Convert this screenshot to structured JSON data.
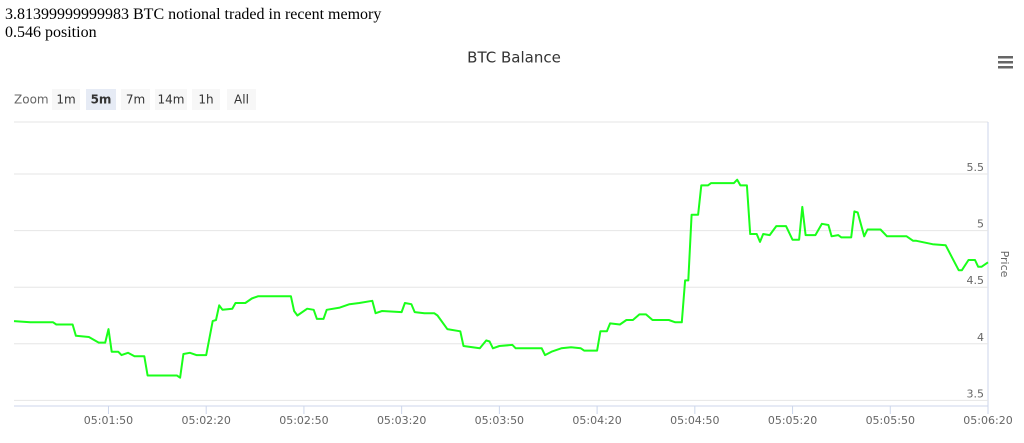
{
  "header": {
    "lines": [
      "3.81399999999983 BTC notional traded in recent memory",
      "0.546 position"
    ]
  },
  "chart_data": {
    "type": "line",
    "title": "BTC Balance",
    "y_axis_label": "Price",
    "zoom": {
      "label": "Zoom",
      "buttons": [
        "1m",
        "5m",
        "7m",
        "14m",
        "1h",
        "All"
      ],
      "selected": 1
    },
    "grid": true,
    "xlim": [
      "05:01:21",
      "05:06:20"
    ],
    "xticks": [
      "05:01:50",
      "05:02:20",
      "05:02:50",
      "05:03:20",
      "05:03:50",
      "05:04:20",
      "05:04:50",
      "05:05:20",
      "05:05:50",
      "05:06:20"
    ],
    "ylim": [
      3.45,
      5.96
    ],
    "yticks": [
      3.5,
      4,
      4.5,
      5,
      5.5
    ],
    "x": [
      "05:01:21",
      "05:01:26",
      "05:01:33",
      "05:01:34",
      "05:01:39",
      "05:01:40",
      "05:01:44",
      "05:01:47",
      "05:01:49",
      "05:01:50",
      "05:01:51",
      "05:01:53",
      "05:01:54",
      "05:01:56",
      "05:01:58",
      "05:02:01",
      "05:02:02",
      "05:02:11",
      "05:02:12",
      "05:02:13",
      "05:02:15",
      "05:02:17",
      "05:02:20",
      "05:02:22",
      "05:02:23",
      "05:02:24",
      "05:02:25",
      "05:02:28",
      "05:02:29",
      "05:02:32",
      "05:02:34",
      "05:02:36",
      "05:02:46",
      "05:02:47",
      "05:02:48",
      "05:02:51",
      "05:02:53",
      "05:02:54",
      "05:02:56",
      "05:02:57",
      "05:03:01",
      "05:03:04",
      "05:03:07",
      "05:03:11",
      "05:03:12",
      "05:03:14",
      "05:03:20",
      "05:03:21",
      "05:03:23",
      "05:03:24",
      "05:03:27",
      "05:03:30",
      "05:03:31",
      "05:03:34",
      "05:03:38",
      "05:03:39",
      "05:03:44",
      "05:03:46",
      "05:03:47",
      "05:03:48",
      "05:03:50",
      "05:03:54",
      "05:03:55",
      "05:04:03",
      "05:04:04",
      "05:04:06",
      "05:04:09",
      "05:04:12",
      "05:04:15",
      "05:04:16",
      "05:04:20",
      "05:04:21",
      "05:04:23",
      "05:04:24",
      "05:04:27",
      "05:04:29",
      "05:04:31",
      "05:04:33",
      "05:04:35",
      "05:04:37",
      "05:04:42",
      "05:04:44",
      "05:04:46",
      "05:04:47",
      "05:04:48",
      "05:04:49",
      "05:04:51",
      "05:04:52",
      "05:04:54",
      "05:04:55",
      "05:04:58",
      "05:05:02",
      "05:05:03",
      "05:05:04",
      "05:05:06",
      "05:05:07",
      "05:05:09",
      "05:05:10",
      "05:05:11",
      "05:05:13",
      "05:05:15",
      "05:05:18",
      "05:05:20",
      "05:05:22",
      "05:05:23",
      "05:05:24",
      "05:05:27",
      "05:05:29",
      "05:05:31",
      "05:05:32",
      "05:05:34",
      "05:05:35",
      "05:05:38",
      "05:05:39",
      "05:05:40",
      "05:05:42",
      "05:05:43",
      "05:05:47",
      "05:05:49",
      "05:05:55",
      "05:05:57",
      "05:05:58",
      "05:06:03",
      "05:06:07",
      "05:06:09",
      "05:06:11",
      "05:06:12",
      "05:06:14",
      "05:06:16",
      "05:06:17",
      "05:06:18",
      "05:06:20"
    ],
    "series": [
      {
        "name": "Price",
        "color": "#1aff1a",
        "values": [
          4.2,
          4.19,
          4.19,
          4.17,
          4.17,
          4.07,
          4.06,
          4.01,
          4.01,
          4.13,
          3.93,
          3.93,
          3.9,
          3.92,
          3.89,
          3.89,
          3.72,
          3.72,
          3.7,
          3.91,
          3.92,
          3.9,
          3.9,
          4.2,
          4.21,
          4.34,
          4.3,
          4.31,
          4.36,
          4.36,
          4.4,
          4.42,
          4.42,
          4.29,
          4.25,
          4.31,
          4.3,
          4.22,
          4.22,
          4.3,
          4.32,
          4.35,
          4.36,
          4.38,
          4.27,
          4.29,
          4.28,
          4.36,
          4.35,
          4.28,
          4.27,
          4.27,
          4.25,
          4.13,
          4.11,
          3.98,
          3.96,
          4.03,
          4.02,
          3.96,
          3.98,
          3.99,
          3.96,
          3.96,
          3.9,
          3.93,
          3.96,
          3.97,
          3.96,
          3.94,
          3.94,
          4.11,
          4.11,
          4.18,
          4.17,
          4.21,
          4.21,
          4.26,
          4.26,
          4.21,
          4.21,
          4.19,
          4.19,
          4.56,
          4.56,
          5.14,
          5.14,
          5.4,
          5.4,
          5.42,
          5.42,
          5.42,
          5.45,
          5.4,
          5.4,
          4.97,
          4.97,
          4.9,
          4.97,
          4.96,
          5.04,
          5.04,
          4.92,
          4.92,
          5.21,
          4.96,
          4.96,
          5.06,
          5.05,
          4.95,
          4.96,
          4.94,
          4.94,
          5.17,
          5.16,
          4.95,
          5.01,
          5.01,
          4.95,
          4.95,
          4.91,
          4.91,
          4.88,
          4.87,
          4.76,
          4.65,
          4.65,
          4.74,
          4.74,
          4.68,
          4.68,
          4.72
        ]
      }
    ]
  }
}
